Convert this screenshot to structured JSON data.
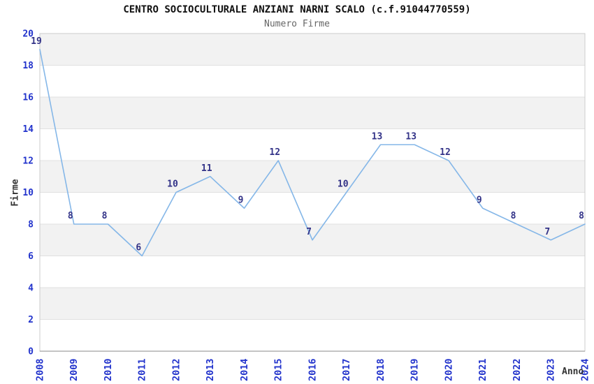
{
  "chart_data": {
    "type": "line",
    "title": "CENTRO SOCIOCULTURALE ANZIANI NARNI SCALO (c.f.91044770559)",
    "subtitle": "Numero Firme",
    "xlabel": "Anno",
    "ylabel": "Firme",
    "x": [
      2008,
      2009,
      2010,
      2011,
      2012,
      2013,
      2014,
      2015,
      2016,
      2017,
      2018,
      2019,
      2020,
      2021,
      2022,
      2023,
      2024
    ],
    "series": [
      {
        "name": "Numero Firme",
        "values": [
          19,
          8,
          8,
          6,
          10,
          11,
          9,
          12,
          7,
          10,
          13,
          13,
          12,
          9,
          8,
          7,
          8
        ]
      }
    ],
    "ylim": [
      0,
      20
    ],
    "y_tick_step": 2,
    "grid": "horizontal-bands-alternating",
    "legend": "none",
    "point_labels": true,
    "colors": {
      "line": "#85b7e8",
      "tick_label": "#2233cc",
      "point_label": "#333388",
      "band_gray": "#f2f2f2",
      "band_white": "#ffffff",
      "gridline": "#e0e0e0",
      "plot_border": "#cccccc",
      "axis_line": "#a0a0a0",
      "title": "#111111",
      "subtitle": "#666666",
      "axis_title": "#333333"
    }
  }
}
